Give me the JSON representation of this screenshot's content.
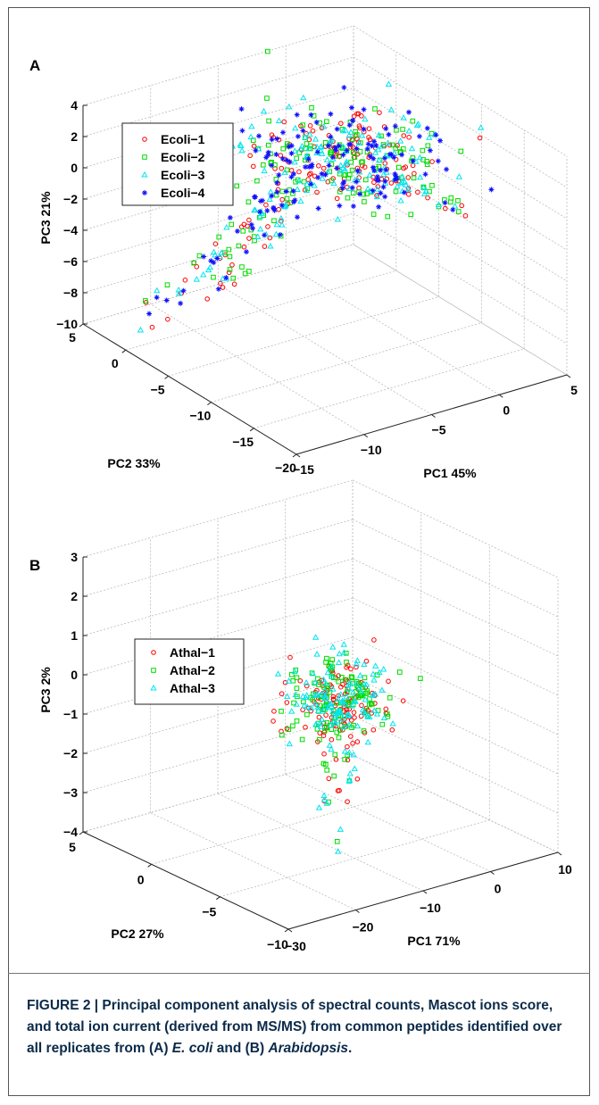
{
  "chart_data": [
    {
      "panel": "A",
      "type": "scatter",
      "xlabel": "PC1 45%",
      "ylabel": "PC2 33%",
      "zlabel": "PC3 21%",
      "xlim": [
        -15,
        5
      ],
      "ylim": [
        -20,
        5
      ],
      "zlim": [
        -10,
        4
      ],
      "xticks": [
        "5",
        "0",
        "−5",
        "−10",
        "−15"
      ],
      "yticks": [
        "5",
        "0",
        "−5",
        "−10",
        "−15",
        "−20"
      ],
      "zticks": [
        "4",
        "2",
        "0",
        "−2",
        "−4",
        "−6",
        "−8",
        "−10"
      ],
      "legend": [
        "Ecoli−1",
        "Ecoli−2",
        "Ecoli−3",
        "Ecoli−4"
      ],
      "series": [
        {
          "name": "Ecoli−1",
          "marker": "circle",
          "color": "#ff0000"
        },
        {
          "name": "Ecoli−2",
          "marker": "square",
          "color": "#00dd00"
        },
        {
          "name": "Ecoli−3",
          "marker": "triangle",
          "color": "#00e5ee"
        },
        {
          "name": "Ecoli−4",
          "marker": "star",
          "color": "#1010ff"
        }
      ]
    },
    {
      "panel": "B",
      "type": "scatter",
      "xlabel": "PC1 71%",
      "ylabel": "PC2 27%",
      "zlabel": "PC3 2%",
      "xlim": [
        -30,
        10
      ],
      "ylim": [
        -10,
        5
      ],
      "zlim": [
        -4,
        3
      ],
      "xticks": [
        "10",
        "0",
        "−10",
        "−20",
        "−30"
      ],
      "yticks": [
        "5",
        "0",
        "−5",
        "−10"
      ],
      "zticks": [
        "3",
        "2",
        "1",
        "0",
        "−1",
        "−2",
        "−3",
        "−4"
      ],
      "legend": [
        "Athal−1",
        "Athal−2",
        "Athal−3"
      ],
      "series": [
        {
          "name": "Athal−1",
          "marker": "circle",
          "color": "#ff0000"
        },
        {
          "name": "Athal−2",
          "marker": "square",
          "color": "#00dd00"
        },
        {
          "name": "Athal−3",
          "marker": "triangle",
          "color": "#00e5ee"
        }
      ]
    }
  ],
  "caption": {
    "text": "FIGURE 2 | Principal component analysis of spectral counts, Mascot ions score, and total ion current (derived from MS/MS) from common peptides identified over all replicates from (A) E. coli and (B) Arabidopsis."
  }
}
